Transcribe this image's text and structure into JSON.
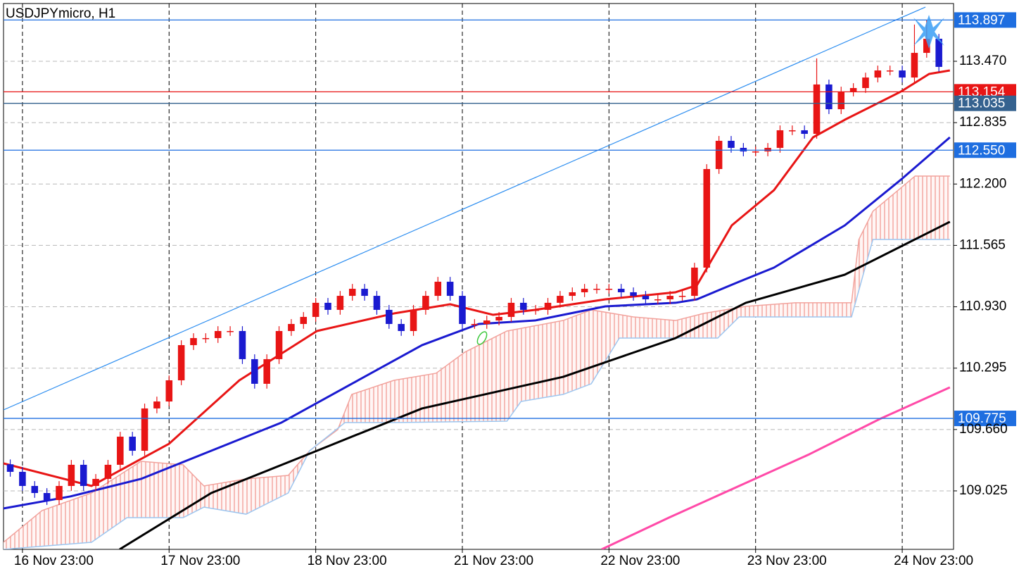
{
  "chart_data": {
    "type": "candlestick",
    "title": "USDJPYmicro, H1",
    "x": [
      -2,
      0,
      2,
      4,
      6,
      8,
      10,
      12,
      14,
      16,
      18,
      20,
      22,
      24,
      26,
      28,
      30,
      32,
      34,
      36,
      38,
      40,
      42,
      44,
      46,
      48,
      50,
      52,
      54,
      56,
      58,
      60,
      62,
      64,
      66,
      68,
      70,
      72,
      74,
      76,
      78,
      80,
      82,
      84,
      86,
      88,
      90,
      92,
      94,
      96,
      98,
      100,
      102,
      104,
      106,
      108,
      110,
      112,
      114,
      116,
      118,
      120,
      122,
      124,
      126,
      128,
      130,
      132,
      134,
      136,
      138,
      140,
      142,
      144,
      146,
      148,
      150
    ],
    "open": [
      109.3,
      109.222,
      109.076,
      109.003,
      108.93,
      109.076,
      109.295,
      109.076,
      109.149,
      109.295,
      109.586,
      109.44,
      109.878,
      109.95,
      110.169,
      110.533,
      110.606,
      110.606,
      110.679,
      110.679,
      110.388,
      110.133,
      110.388,
      110.679,
      110.752,
      110.825,
      110.971,
      110.898,
      111.043,
      111.116,
      111.043,
      110.898,
      110.752,
      110.679,
      110.898,
      111.043,
      111.189,
      111.043,
      110.752,
      110.752,
      110.788,
      110.825,
      110.971,
      110.898,
      110.898,
      110.971,
      111.043,
      111.08,
      111.116,
      111.116,
      111.116,
      111.08,
      111.043,
      111.007,
      111.007,
      111.043,
      111.043,
      111.335,
      112.355,
      112.647,
      112.574,
      112.537,
      112.537,
      112.574,
      112.756,
      112.756,
      112.719,
      113.23,
      112.974,
      113.157,
      113.193,
      113.302,
      113.375,
      113.375,
      113.302,
      113.557,
      113.703
    ],
    "high": [
      109.35,
      109.272,
      109.126,
      109.053,
      109.126,
      109.345,
      109.345,
      109.199,
      109.345,
      109.636,
      109.636,
      109.928,
      110.0,
      110.219,
      110.583,
      110.656,
      110.656,
      110.729,
      110.729,
      110.729,
      110.438,
      110.438,
      110.729,
      110.802,
      110.875,
      111.021,
      111.021,
      111.093,
      111.166,
      111.166,
      111.093,
      110.948,
      110.802,
      110.948,
      111.093,
      111.239,
      111.239,
      111.093,
      110.802,
      110.838,
      110.875,
      111.021,
      111.021,
      110.948,
      111.021,
      111.093,
      111.13,
      111.166,
      111.166,
      111.166,
      111.166,
      111.13,
      111.093,
      111.057,
      111.093,
      111.093,
      111.385,
      112.405,
      112.697,
      112.697,
      112.624,
      112.587,
      112.624,
      112.806,
      112.806,
      112.806,
      113.5,
      113.28,
      113.207,
      113.243,
      113.352,
      113.425,
      113.425,
      113.425,
      113.85,
      113.897,
      113.753
    ],
    "low": [
      109.172,
      109.026,
      108.953,
      108.88,
      108.88,
      109.026,
      109.026,
      109.026,
      109.099,
      109.245,
      109.39,
      109.39,
      109.828,
      109.9,
      110.119,
      110.483,
      110.556,
      110.556,
      110.629,
      110.338,
      110.083,
      110.083,
      110.338,
      110.629,
      110.702,
      110.775,
      110.848,
      110.848,
      110.993,
      110.993,
      110.848,
      110.702,
      110.629,
      110.629,
      110.848,
      110.993,
      110.993,
      110.702,
      110.702,
      110.702,
      110.738,
      110.775,
      110.848,
      110.848,
      110.848,
      110.921,
      110.993,
      111.03,
      111.066,
      111.066,
      111.03,
      110.993,
      110.957,
      110.957,
      110.957,
      110.993,
      110.993,
      111.285,
      112.305,
      112.524,
      112.487,
      112.487,
      112.487,
      112.524,
      112.706,
      112.669,
      112.669,
      112.924,
      112.924,
      113.107,
      113.143,
      113.252,
      113.325,
      113.252,
      113.252,
      113.507,
      113.362
    ],
    "close": [
      109.222,
      109.076,
      109.003,
      108.93,
      109.076,
      109.295,
      109.076,
      109.149,
      109.295,
      109.586,
      109.44,
      109.878,
      109.95,
      110.169,
      110.533,
      110.606,
      110.606,
      110.679,
      110.679,
      110.388,
      110.133,
      110.388,
      110.679,
      110.752,
      110.825,
      110.971,
      110.898,
      111.043,
      111.116,
      111.043,
      110.898,
      110.752,
      110.679,
      110.898,
      111.043,
      111.189,
      111.043,
      110.752,
      110.752,
      110.788,
      110.825,
      110.971,
      110.898,
      110.898,
      110.971,
      111.043,
      111.08,
      111.116,
      111.116,
      111.116,
      111.08,
      111.043,
      111.007,
      111.007,
      111.043,
      111.043,
      111.335,
      112.355,
      112.647,
      112.574,
      112.537,
      112.537,
      112.574,
      112.756,
      112.756,
      112.719,
      113.23,
      112.974,
      113.157,
      113.193,
      113.302,
      113.375,
      113.375,
      113.302,
      113.557,
      113.703,
      113.412
    ],
    "up_color": "#e81515",
    "down_color": "#1a1ad0",
    "xlim": [
      -3.1,
      152.4
    ],
    "xticks": [
      {
        "value": 0,
        "label": "16 Nov 23:00"
      },
      {
        "value": 24,
        "label": "17 Nov 23:00"
      },
      {
        "value": 48,
        "label": "18 Nov 23:00"
      },
      {
        "value": 72,
        "label": "21 Nov 23:00"
      },
      {
        "value": 96,
        "label": "22 Nov 23:00"
      },
      {
        "value": 120,
        "label": "23 Nov 23:00"
      },
      {
        "value": 144,
        "label": "24 Nov 23:00"
      }
    ],
    "ylim": [
      108.42,
      114.104
    ],
    "yticks": [
      {
        "value": 113.47,
        "label": "113.470"
      },
      112.835,
      {
        "value": 112.2,
        "label": "112.200"
      },
      111.565,
      {
        "value": 110.93,
        "label": "110.930"
      },
      110.295,
      {
        "value": 109.66,
        "label": "109.660"
      },
      109.025
    ],
    "grid": true,
    "lines": [
      {
        "color": "#e81515",
        "x": [
          -3.1,
          11.3,
          24.0,
          35.5,
          48.2,
          60.8,
          70.0,
          77.0,
          83.9,
          95.4,
          106.9,
          110.4,
          116.1,
          123.0,
          129.4,
          134.6,
          143.8,
          148.4,
          151.8
        ],
        "values": [
          109.309,
          109.076,
          109.513,
          110.169,
          110.679,
          110.861,
          110.956,
          110.847,
          110.898,
          111.007,
          111.08,
          111.153,
          111.772,
          112.136,
          112.683,
          112.865,
          113.157,
          113.339,
          113.375
        ]
      },
      {
        "color": "#1a1ad0",
        "x": [
          -3.1,
          7.8,
          19.4,
          30.9,
          42.4,
          53.9,
          65.4,
          74.7,
          83.9,
          95.4,
          106.9,
          110.4,
          117.3,
          123.0,
          134.6,
          143.8,
          151.8
        ],
        "values": [
          108.843,
          108.967,
          109.149,
          109.44,
          109.732,
          110.133,
          110.533,
          110.752,
          110.788,
          110.934,
          110.971,
          111.007,
          111.189,
          111.335,
          111.772,
          112.246,
          112.683
        ]
      },
      {
        "color": "#000000",
        "x": [
          15.9,
          30.9,
          48.2,
          65.4,
          88.5,
          106.9,
          118.4,
          134.6,
          151.8
        ],
        "values": [
          108.42,
          109.003,
          109.44,
          109.878,
          110.205,
          110.606,
          110.971,
          111.262,
          111.809
        ]
      },
      {
        "color": "#ff4aa8",
        "x": [
          94.8,
          105.8,
          117.3,
          128.8,
          140.3,
          151.8
        ],
        "values": [
          108.42,
          108.748,
          109.076,
          109.404,
          109.768,
          110.096
        ]
      }
    ],
    "cloud": {
      "upper": {
        "color": "#f2a29c",
        "x": [
          -3.1,
          3.2,
          11.3,
          19.4,
          26.3,
          29.7,
          36.6,
          43.5,
          47.0,
          51.6,
          53.9,
          60.8,
          67.7,
          72.4,
          79.3,
          88.5,
          93.1,
          100.0,
          106.9,
          111.5,
          118.4,
          126.5,
          135.7,
          136.9,
          139.2,
          146.1,
          151.8
        ],
        "values": [
          108.493,
          108.821,
          109.003,
          109.331,
          109.295,
          109.076,
          109.149,
          109.185,
          109.44,
          109.659,
          110.023,
          110.169,
          110.242,
          110.46,
          110.679,
          110.788,
          110.898,
          110.825,
          110.788,
          110.861,
          110.934,
          110.971,
          110.971,
          111.626,
          111.918,
          112.282,
          112.282
        ]
      },
      "lower": {
        "color": "#9cc6f0",
        "x": [
          -3.1,
          11.3,
          17.1,
          26.3,
          29.7,
          36.6,
          43.5,
          47.0,
          52.8,
          60.8,
          79.3,
          81.6,
          88.5,
          93.1,
          97.7,
          113.8,
          117.3,
          135.7,
          139.2,
          151.8
        ],
        "values": [
          108.42,
          108.493,
          108.748,
          108.748,
          108.857,
          108.784,
          109.003,
          109.44,
          109.732,
          109.732,
          109.746,
          109.95,
          110.023,
          110.133,
          110.606,
          110.606,
          110.825,
          110.825,
          111.626,
          111.626
        ]
      }
    },
    "trendline": {
      "color": "#2a8cf0",
      "x": [
        -3.1,
        147.8
      ],
      "values": [
        109.863,
        114.031
      ]
    },
    "levels": [
      {
        "value": 113.897,
        "color": "#1e6ee0"
      },
      {
        "value": 113.154,
        "color": "#e81515"
      },
      {
        "value": 113.035,
        "color": "#35628f"
      },
      {
        "value": 112.55,
        "label": "112.550",
        "color": "#1e6ee0"
      },
      {
        "value": 109.775,
        "color": "#1e6ee0"
      }
    ]
  }
}
